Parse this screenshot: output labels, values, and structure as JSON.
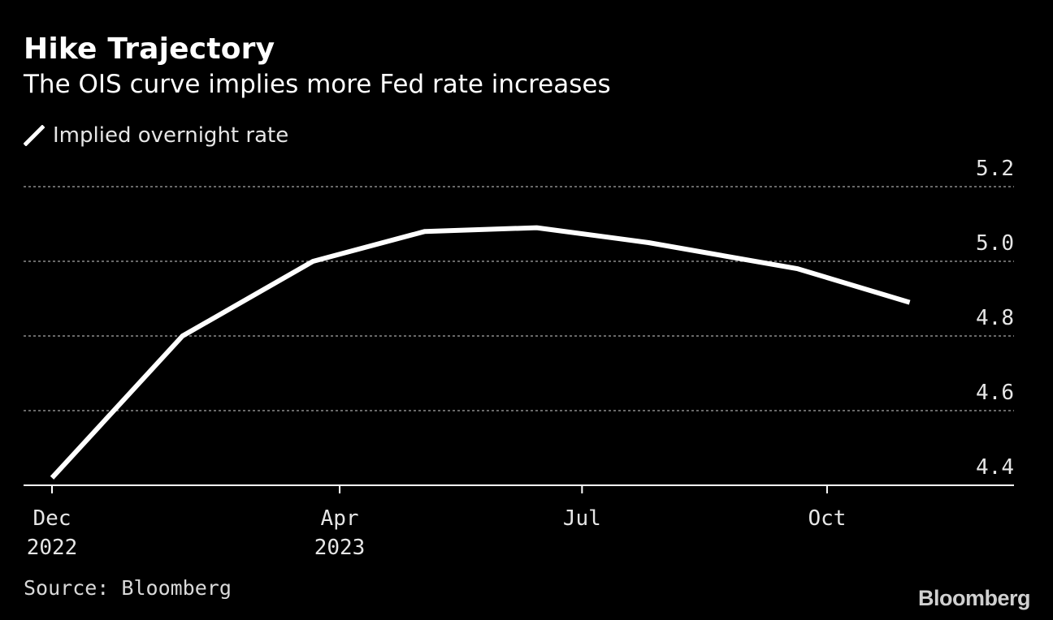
{
  "header": {
    "title": "Hike Trajectory",
    "subtitle": "The OIS curve implies more Fed rate increases"
  },
  "legend": {
    "label": "Implied overnight rate",
    "icon": "line-swatch-icon"
  },
  "footer": {
    "source": "Source: Bloomberg",
    "brand": "Bloomberg"
  },
  "colors": {
    "background": "#000000",
    "line": "#ffffff",
    "grid": "#8c8c8c",
    "text": "#e6e6e6"
  },
  "chart_data": {
    "type": "line",
    "title": "Hike Trajectory",
    "subtitle": "The OIS curve implies more Fed rate increases",
    "xlabel": "",
    "ylabel": "",
    "y_axis_position": "right",
    "ylim": [
      4.4,
      5.2
    ],
    "yticks": [
      4.4,
      4.6,
      4.8,
      5.0,
      5.2
    ],
    "ytick_labels": [
      "4.4",
      "4.6",
      "4.8",
      "5.0",
      "5.2"
    ],
    "grid": true,
    "legend_position": "top-left",
    "xlim": [
      "2022-12-14",
      "2023-11-17"
    ],
    "xticks": [
      {
        "date": "2022-12-14",
        "line1": "Dec",
        "line2": "2022"
      },
      {
        "date": "2023-04-01",
        "line1": "Apr",
        "line2": "2023"
      },
      {
        "date": "2023-07-01",
        "line1": "Jul",
        "line2": ""
      },
      {
        "date": "2023-10-01",
        "line1": "Oct",
        "line2": ""
      }
    ],
    "series": [
      {
        "name": "Implied overnight rate",
        "x": [
          "2022-12-14",
          "2023-02-01",
          "2023-03-22",
          "2023-05-03",
          "2023-06-14",
          "2023-07-26",
          "2023-09-20",
          "2023-11-01"
        ],
        "values": [
          4.42,
          4.8,
          5.0,
          5.08,
          5.09,
          5.05,
          4.98,
          4.89
        ]
      }
    ]
  }
}
